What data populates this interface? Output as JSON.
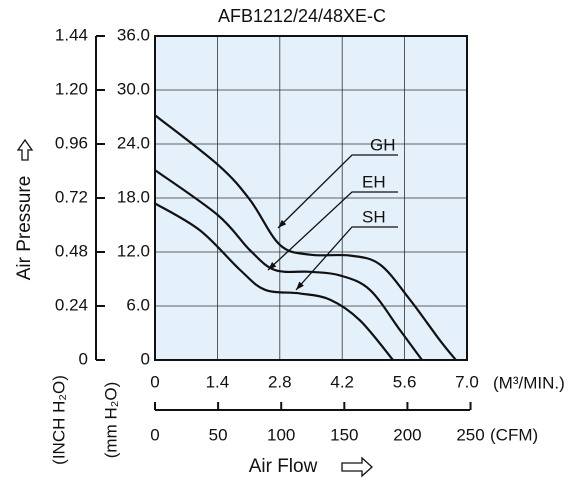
{
  "chart_data": {
    "type": "line",
    "title": "AFB1212/24/48XE-C",
    "y_label": "Air Pressure",
    "y_unit_label": "(mm H₂O)",
    "y2_unit_label": "(INCH H₂O)",
    "x_label": "Air Flow",
    "x_unit_label": "(M³/MIN.)",
    "x2_unit_label": "(CFM)",
    "xlim": [
      0,
      7
    ],
    "xticks": [
      0,
      1.4,
      2.8,
      4.2,
      5.6,
      {
        "value": 7,
        "label": "7.0"
      }
    ],
    "x2lim": [
      0,
      250
    ],
    "x2ticks": [
      0,
      50,
      100,
      150,
      200,
      250
    ],
    "ylim": [
      0,
      36
    ],
    "yticks": [
      0,
      {
        "value": 6,
        "label": "6.0"
      },
      {
        "value": 12,
        "label": "12.0"
      },
      {
        "value": 18,
        "label": "18.0"
      },
      {
        "value": 24,
        "label": "24.0"
      },
      {
        "value": 30,
        "label": "30.0"
      },
      {
        "value": 36,
        "label": "36.0"
      }
    ],
    "y2lim": [
      0,
      1.44
    ],
    "y2ticks": [
      0,
      0.24,
      0.48,
      0.72,
      0.96,
      {
        "value": 1.2,
        "label": "1.20"
      },
      1.44
    ],
    "grid": true,
    "series": [
      {
        "name": "GH",
        "color": "#111111",
        "x": [
          0,
          1.41,
          2.13,
          2.8,
          3.48,
          4.38,
          5.05,
          5.72,
          6.39,
          6.75
        ],
        "values": [
          27.2,
          21.7,
          17.8,
          12.8,
          11.7,
          11.6,
          10.6,
          6.7,
          2.2,
          0
        ]
      },
      {
        "name": "EH",
        "color": "#111111",
        "x": [
          0,
          1.41,
          2.13,
          2.69,
          3.48,
          4.15,
          4.82,
          5.5,
          5.99
        ],
        "values": [
          21.1,
          16.1,
          12.2,
          10,
          9.8,
          9.4,
          7.8,
          3.3,
          0
        ]
      },
      {
        "name": "SH",
        "color": "#111111",
        "x": [
          0,
          1.01,
          1.91,
          2.47,
          3.25,
          3.93,
          4.6,
          5.34
        ],
        "values": [
          17.4,
          14.4,
          10,
          7.8,
          7.4,
          6.7,
          4.4,
          0
        ]
      }
    ]
  }
}
